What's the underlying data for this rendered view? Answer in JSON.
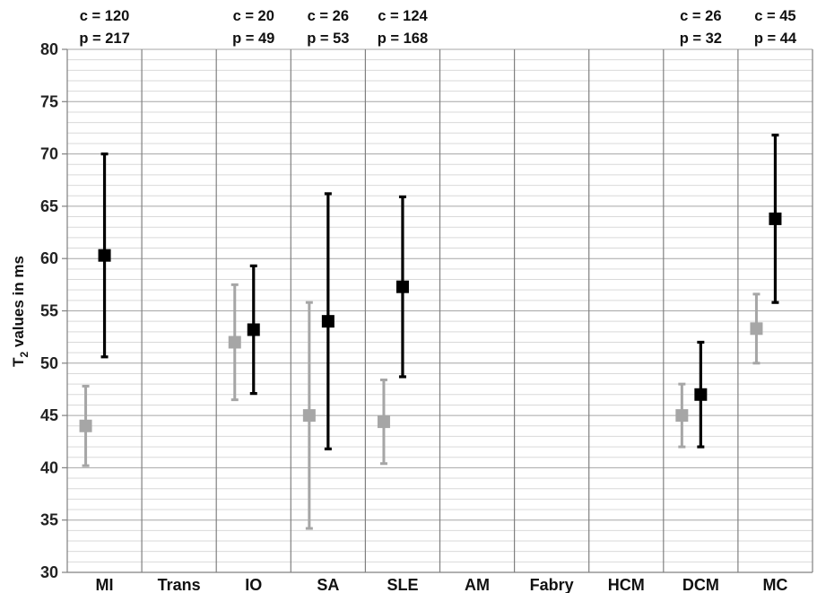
{
  "chart_data": {
    "type": "scatter",
    "ylabel": "T",
    "ylabel_subscript": "2",
    "ylabel_suffix": " values in ms",
    "ylim": [
      30,
      80
    ],
    "y_major_ticks": [
      30,
      35,
      40,
      45,
      50,
      55,
      60,
      65,
      70,
      75,
      80
    ],
    "y_minor_step": 1,
    "grid": true,
    "categories": [
      "MI",
      "Trans",
      "IO",
      "SA",
      "SLE",
      "AM",
      "Fabry",
      "HCM",
      "DCM",
      "MC"
    ],
    "counts": [
      {
        "category": "MI",
        "c": "c = 120",
        "p": "p = 217"
      },
      {
        "category": "IO",
        "c": "c = 20",
        "p": "p = 49"
      },
      {
        "category": "SA",
        "c": "c = 26",
        "p": "p = 53"
      },
      {
        "category": "SLE",
        "c": "c = 124",
        "p": "p = 168"
      },
      {
        "category": "DCM",
        "c": "c = 26",
        "p": "p = 32"
      },
      {
        "category": "MC",
        "c": "c = 45",
        "p": "p = 44"
      }
    ],
    "series": [
      {
        "color": "#a6a6a6",
        "points": [
          {
            "category": "MI",
            "value": 44.0,
            "low": 40.2,
            "high": 47.8
          },
          {
            "category": "IO",
            "value": 52.0,
            "low": 46.5,
            "high": 57.5
          },
          {
            "category": "SA",
            "value": 45.0,
            "low": 34.2,
            "high": 55.8
          },
          {
            "category": "SLE",
            "value": 44.4,
            "low": 40.4,
            "high": 48.4
          },
          {
            "category": "DCM",
            "value": 45.0,
            "low": 42.0,
            "high": 48.0
          },
          {
            "category": "MC",
            "value": 53.3,
            "low": 50.0,
            "high": 56.6
          }
        ]
      },
      {
        "color": "#000000",
        "points": [
          {
            "category": "MI",
            "value": 60.3,
            "low": 50.6,
            "high": 70.0
          },
          {
            "category": "IO",
            "value": 53.2,
            "low": 47.1,
            "high": 59.3
          },
          {
            "category": "SA",
            "value": 54.0,
            "low": 41.8,
            "high": 66.2
          },
          {
            "category": "SLE",
            "value": 57.3,
            "low": 48.7,
            "high": 65.9
          },
          {
            "category": "DCM",
            "value": 47.0,
            "low": 42.0,
            "high": 52.0
          },
          {
            "category": "MC",
            "value": 63.8,
            "low": 55.8,
            "high": 71.8
          }
        ]
      }
    ]
  }
}
